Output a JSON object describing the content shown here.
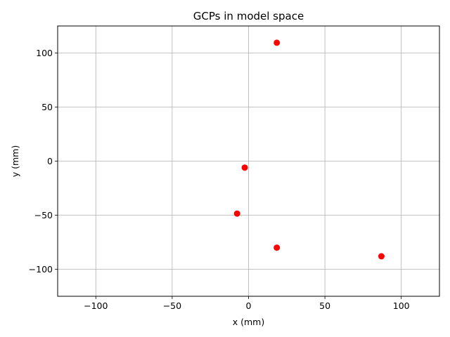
{
  "chart_data": {
    "type": "scatter",
    "title": "GCPs in model space",
    "xlabel": "x (mm)",
    "ylabel": "y (mm)",
    "xlim": [
      -125,
      125
    ],
    "ylim": [
      -125,
      125
    ],
    "xticks": [
      -100,
      -50,
      0,
      50,
      100
    ],
    "yticks": [
      -100,
      -50,
      0,
      50,
      100
    ],
    "grid": true,
    "series": [
      {
        "color": "#ff0000",
        "points": [
          {
            "x": 18.5,
            "y": 109.5
          },
          {
            "x": -2.5,
            "y": -6
          },
          {
            "x": -7.5,
            "y": -48.5
          },
          {
            "x": 18.5,
            "y": -80
          },
          {
            "x": 87,
            "y": -88
          }
        ]
      }
    ]
  }
}
